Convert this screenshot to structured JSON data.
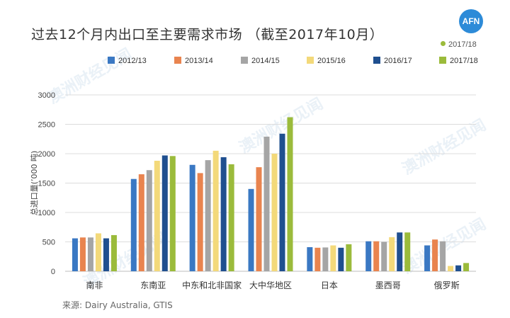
{
  "title": "过去12个月内出口至主要需求市场 （截至2017年10月）",
  "logo": "AFN",
  "watermark": "澳洲财经见闻",
  "badge": {
    "label": "2017/18",
    "color": "#9bbb3b"
  },
  "source": "来源: Dairy Australia, GTIS",
  "chart_data": {
    "type": "bar",
    "title": "过去12个月内出口至主要需求市场 （截至2017年10月）",
    "ylabel": "总进口量(’000 吨)",
    "xlabel": "",
    "ylim": [
      0,
      3000
    ],
    "yticks": [
      0,
      500,
      1000,
      1500,
      2000,
      2500,
      3000
    ],
    "grid": true,
    "legend": "top",
    "categories": [
      "南非",
      "东南亚",
      "中东和北非国家",
      "大中华地区",
      "日本",
      "墨西哥",
      "俄罗斯"
    ],
    "series": [
      {
        "name": "2012/13",
        "color": "#3a78c3",
        "values": [
          560,
          1570,
          1810,
          1400,
          410,
          510,
          440
        ]
      },
      {
        "name": "2013/14",
        "color": "#e9844f",
        "values": [
          575,
          1650,
          1670,
          1770,
          400,
          510,
          540
        ]
      },
      {
        "name": "2014/15",
        "color": "#a5a5a5",
        "values": [
          575,
          1720,
          1890,
          2290,
          405,
          500,
          510
        ]
      },
      {
        "name": "2015/16",
        "color": "#f3d97a",
        "values": [
          645,
          1880,
          2050,
          2000,
          440,
          580,
          90
        ]
      },
      {
        "name": "2016/17",
        "color": "#1f4f8f",
        "values": [
          560,
          1970,
          1940,
          2340,
          400,
          660,
          100
        ]
      },
      {
        "name": "2017/18",
        "color": "#9bbb3b",
        "values": [
          615,
          1960,
          1820,
          2620,
          460,
          660,
          140
        ]
      }
    ]
  }
}
